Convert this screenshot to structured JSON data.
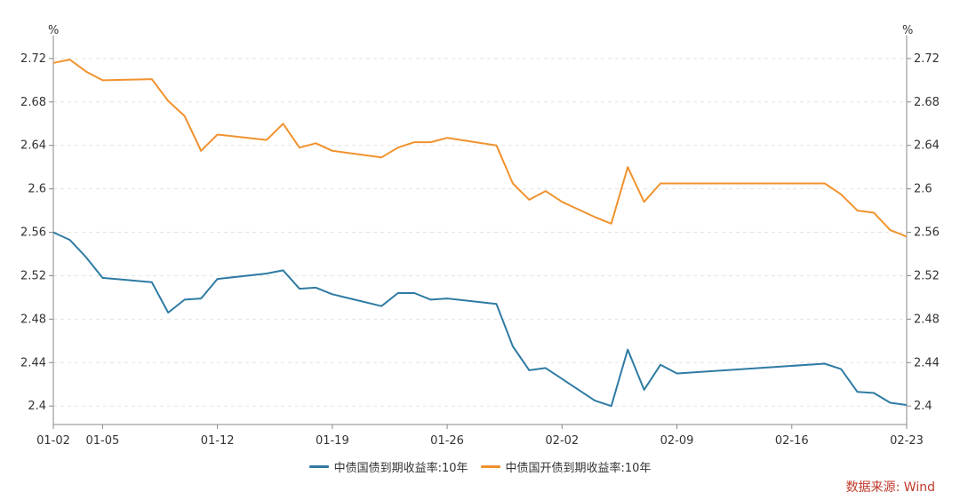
{
  "chart_data": {
    "type": "line",
    "title": "",
    "y_unit_left": "%",
    "y_unit_right": "%",
    "ylim": [
      2.383,
      2.733
    ],
    "yticks": [
      2.4,
      2.44,
      2.48,
      2.52,
      2.56,
      2.6,
      2.64,
      2.68,
      2.72
    ],
    "ytick_labels": [
      "2.4",
      "2.44",
      "2.48",
      "2.52",
      "2.56",
      "2.6",
      "2.64",
      "2.68",
      "2.72"
    ],
    "xlim": [
      "01-02",
      "02-23"
    ],
    "xticks": [
      "01-02",
      "01-05",
      "01-12",
      "01-19",
      "01-26",
      "02-02",
      "02-09",
      "02-16",
      "02-23"
    ],
    "grid": "horizontal-dashed",
    "legend_position": "bottom",
    "series": [
      {
        "name": "中债国债到期收益率:10年",
        "color": "#2e7ba3",
        "points": [
          [
            "01-02",
            2.56
          ],
          [
            "01-03",
            2.553
          ],
          [
            "01-04",
            2.537
          ],
          [
            "01-05",
            2.518
          ],
          [
            "01-08",
            2.514
          ],
          [
            "01-09",
            2.486
          ],
          [
            "01-10",
            2.498
          ],
          [
            "01-11",
            2.499
          ],
          [
            "01-12",
            2.517
          ],
          [
            "01-15",
            2.522
          ],
          [
            "01-16",
            2.525
          ],
          [
            "01-17",
            2.508
          ],
          [
            "01-18",
            2.509
          ],
          [
            "01-19",
            2.503
          ],
          [
            "01-22",
            2.492
          ],
          [
            "01-23",
            2.504
          ],
          [
            "01-24",
            2.504
          ],
          [
            "01-25",
            2.498
          ],
          [
            "01-26",
            2.499
          ],
          [
            "01-29",
            2.494
          ],
          [
            "01-30",
            2.455
          ],
          [
            "01-31",
            2.433
          ],
          [
            "02-01",
            2.435
          ],
          [
            "02-02",
            2.425
          ],
          [
            "02-04",
            2.405
          ],
          [
            "02-05",
            2.4
          ],
          [
            "02-06",
            2.452
          ],
          [
            "02-07",
            2.415
          ],
          [
            "02-08",
            2.438
          ],
          [
            "02-09",
            2.43
          ],
          [
            "02-18",
            2.439
          ],
          [
            "02-19",
            2.434
          ],
          [
            "02-20",
            2.413
          ],
          [
            "02-21",
            2.412
          ],
          [
            "02-22",
            2.403
          ],
          [
            "02-23",
            2.401
          ]
        ]
      },
      {
        "name": "中债国开债到期收益率:10年",
        "color": "#f0922e",
        "points": [
          [
            "01-02",
            2.716
          ],
          [
            "01-03",
            2.719
          ],
          [
            "01-04",
            2.708
          ],
          [
            "01-05",
            2.7
          ],
          [
            "01-08",
            2.701
          ],
          [
            "01-09",
            2.681
          ],
          [
            "01-10",
            2.667
          ],
          [
            "01-11",
            2.635
          ],
          [
            "01-12",
            2.65
          ],
          [
            "01-15",
            2.645
          ],
          [
            "01-16",
            2.66
          ],
          [
            "01-17",
            2.638
          ],
          [
            "01-18",
            2.642
          ],
          [
            "01-19",
            2.635
          ],
          [
            "01-22",
            2.629
          ],
          [
            "01-23",
            2.638
          ],
          [
            "01-24",
            2.643
          ],
          [
            "01-25",
            2.643
          ],
          [
            "01-26",
            2.647
          ],
          [
            "01-29",
            2.64
          ],
          [
            "01-30",
            2.605
          ],
          [
            "01-31",
            2.59
          ],
          [
            "02-01",
            2.598
          ],
          [
            "02-02",
            2.588
          ],
          [
            "02-04",
            2.574
          ],
          [
            "02-05",
            2.568
          ],
          [
            "02-06",
            2.62
          ],
          [
            "02-07",
            2.588
          ],
          [
            "02-08",
            2.605
          ],
          [
            "02-09",
            2.605
          ],
          [
            "02-18",
            2.605
          ],
          [
            "02-19",
            2.595
          ],
          [
            "02-20",
            2.58
          ],
          [
            "02-21",
            2.578
          ],
          [
            "02-22",
            2.562
          ],
          [
            "02-23",
            2.556
          ]
        ]
      }
    ]
  },
  "source_label": "数据来源: Wind",
  "colors": {
    "axis": "#888888",
    "grid": "#e3e3e3",
    "source": "#c0392b"
  }
}
